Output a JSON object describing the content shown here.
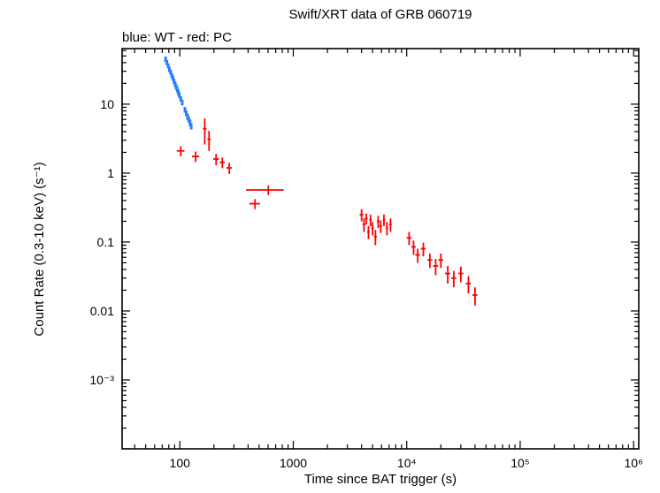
{
  "chart_data": {
    "type": "scatter",
    "title": "Swift/XRT data of GRB 060719",
    "annotation": "blue: WT - red: PC",
    "xlabel": "Time since BAT trigger (s)",
    "ylabel": "Count Rate (0.3-10 keV) (s⁻¹)",
    "xscale": "log",
    "yscale": "log",
    "xlim": [
      31,
      1110000
    ],
    "ylim": [
      0.0001,
      64
    ],
    "grid": false,
    "legend_position": "top-left",
    "xticks": [
      {
        "v": 100,
        "label": "100"
      },
      {
        "v": 1000,
        "label": "1000"
      },
      {
        "v": 10000,
        "label": "10⁴"
      },
      {
        "v": 100000,
        "label": "10⁵"
      },
      {
        "v": 1000000,
        "label": "10⁶"
      }
    ],
    "yticks": [
      {
        "v": 0.001,
        "label": "10⁻³"
      },
      {
        "v": 0.01,
        "label": "0.01"
      },
      {
        "v": 0.1,
        "label": "0.1"
      },
      {
        "v": 1,
        "label": "1"
      },
      {
        "v": 10,
        "label": "10"
      }
    ],
    "series": [
      {
        "name": "WT",
        "color": "#2a7fff",
        "points": [
          [
            75,
            45,
            1,
            4
          ],
          [
            77,
            40,
            1,
            3.5
          ],
          [
            79,
            36,
            1,
            3
          ],
          [
            81,
            32,
            1,
            2.8
          ],
          [
            83,
            29,
            1,
            2.5
          ],
          [
            85,
            26,
            1,
            2.3
          ],
          [
            87,
            24,
            1,
            2.1
          ],
          [
            89,
            21.5,
            1,
            1.9
          ],
          [
            91,
            19.5,
            1,
            1.8
          ],
          [
            93,
            17.8,
            1,
            1.6
          ],
          [
            95,
            16.3,
            1,
            1.5
          ],
          [
            97,
            14.9,
            1,
            1.4
          ],
          [
            99,
            13.6,
            1,
            1.3
          ],
          [
            102,
            12.0,
            1.5,
            1.1
          ],
          [
            105,
            10.6,
            1.5,
            1.0
          ],
          [
            111,
            8.3,
            1.5,
            0.8
          ],
          [
            114,
            7.4,
            1,
            0.7
          ],
          [
            117,
            6.6,
            1,
            0.7
          ],
          [
            120,
            6.0,
            1,
            0.6
          ],
          [
            123,
            5.4,
            1,
            0.6
          ],
          [
            126,
            4.8,
            1,
            0.5
          ]
        ]
      },
      {
        "name": "PC",
        "color": "#ff0000",
        "points": [
          [
            102,
            2.1,
            8,
            0.35
          ],
          [
            138,
            1.75,
            10,
            0.3
          ],
          [
            166,
            4.4,
            6,
            1.8
          ],
          [
            181,
            3.1,
            6,
            1.0
          ],
          [
            209,
            1.6,
            12,
            0.3
          ],
          [
            237,
            1.43,
            12,
            0.25
          ],
          [
            273,
            1.19,
            15,
            0.22
          ],
          [
            460,
            0.36,
            50,
            0.06
          ],
          [
            603,
            0.57,
            220,
            0.09
          ],
          [
            4000,
            0.25,
            150,
            0.05
          ],
          [
            4200,
            0.18,
            120,
            0.04
          ],
          [
            4400,
            0.22,
            120,
            0.04
          ],
          [
            4600,
            0.14,
            120,
            0.03
          ],
          [
            4800,
            0.21,
            120,
            0.04
          ],
          [
            5000,
            0.16,
            120,
            0.035
          ],
          [
            5300,
            0.12,
            150,
            0.03
          ],
          [
            5600,
            0.2,
            150,
            0.04
          ],
          [
            5900,
            0.17,
            150,
            0.035
          ],
          [
            6300,
            0.21,
            150,
            0.04
          ],
          [
            6700,
            0.16,
            150,
            0.035
          ],
          [
            7200,
            0.18,
            180,
            0.04
          ],
          [
            10500,
            0.115,
            500,
            0.025
          ],
          [
            11500,
            0.085,
            500,
            0.02
          ],
          [
            12500,
            0.065,
            600,
            0.015
          ],
          [
            14000,
            0.08,
            700,
            0.018
          ],
          [
            16000,
            0.055,
            800,
            0.013
          ],
          [
            18000,
            0.045,
            900,
            0.012
          ],
          [
            20000,
            0.055,
            1000,
            0.013
          ],
          [
            23000,
            0.035,
            1200,
            0.01
          ],
          [
            26000,
            0.03,
            1300,
            0.008
          ],
          [
            30000,
            0.035,
            1500,
            0.009
          ],
          [
            35000,
            0.025,
            1800,
            0.007
          ],
          [
            40000,
            0.017,
            2000,
            0.005
          ]
        ]
      }
    ]
  }
}
